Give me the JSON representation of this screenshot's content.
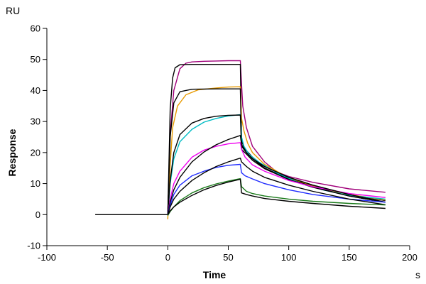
{
  "chart_data": {
    "type": "line",
    "title": "",
    "xlabel": "Time",
    "ylabel": "Response",
    "x_unit": "s",
    "y_unit": "RU",
    "xlim": [
      -100,
      200
    ],
    "ylim": [
      -10,
      60
    ],
    "xticks": [
      -100,
      -50,
      0,
      50,
      100,
      150,
      200
    ],
    "yticks": [
      -10,
      0,
      10,
      20,
      30,
      40,
      50,
      60
    ],
    "grid": false,
    "legend": "none",
    "baseline": {
      "color": "#000000",
      "points": [
        [
          -60,
          0
        ],
        [
          0,
          0
        ]
      ]
    },
    "series": [
      {
        "color": "#a0007a",
        "points": [
          [
            0,
            0
          ],
          [
            2,
            26
          ],
          [
            5,
            40
          ],
          [
            10,
            47
          ],
          [
            15,
            48.8
          ],
          [
            20,
            49.2
          ],
          [
            30,
            49.4
          ],
          [
            40,
            49.5
          ],
          [
            50,
            49.6
          ],
          [
            60,
            49.6
          ],
          [
            61,
            42
          ],
          [
            62,
            35
          ],
          [
            65,
            28
          ],
          [
            70,
            22
          ],
          [
            80,
            17
          ],
          [
            90,
            13.8
          ],
          [
            100,
            12.3
          ],
          [
            120,
            10.4
          ],
          [
            150,
            8.3
          ],
          [
            180,
            7.2
          ]
        ]
      },
      {
        "color": "#000000",
        "points": [
          [
            0,
            0
          ],
          [
            2,
            34
          ],
          [
            4,
            44
          ],
          [
            6,
            47.3
          ],
          [
            10,
            48.3
          ],
          [
            20,
            48.4
          ],
          [
            40,
            48.4
          ],
          [
            60,
            48.4
          ],
          [
            61,
            24
          ],
          [
            63,
            21.5
          ],
          [
            70,
            18.5
          ],
          [
            80,
            15.5
          ],
          [
            100,
            12
          ],
          [
            120,
            9.5
          ],
          [
            150,
            6.5
          ],
          [
            180,
            4.5
          ]
        ]
      },
      {
        "color": "#e89a00",
        "points": [
          [
            0,
            -1.5
          ],
          [
            2,
            16
          ],
          [
            4,
            28
          ],
          [
            8,
            35
          ],
          [
            15,
            38.6
          ],
          [
            25,
            40.2
          ],
          [
            40,
            40.8
          ],
          [
            50,
            41.1
          ],
          [
            60,
            41.2
          ],
          [
            61,
            31
          ],
          [
            63,
            27
          ],
          [
            66,
            23
          ],
          [
            70,
            20
          ],
          [
            80,
            16.2
          ],
          [
            100,
            11.8
          ],
          [
            120,
            9.2
          ],
          [
            150,
            6.5
          ],
          [
            180,
            4.7
          ]
        ]
      },
      {
        "color": "#000000",
        "points": [
          [
            0,
            0
          ],
          [
            2,
            25
          ],
          [
            5,
            36
          ],
          [
            10,
            39.6
          ],
          [
            20,
            40.4
          ],
          [
            40,
            40.5
          ],
          [
            60,
            40.5
          ],
          [
            61,
            22
          ],
          [
            65,
            20
          ],
          [
            70,
            18
          ],
          [
            80,
            15
          ],
          [
            100,
            11.5
          ],
          [
            120,
            9
          ],
          [
            150,
            6
          ],
          [
            180,
            4
          ]
        ]
      },
      {
        "color": "#00bcc4",
        "points": [
          [
            0,
            0
          ],
          [
            2,
            10
          ],
          [
            5,
            18
          ],
          [
            10,
            23.5
          ],
          [
            20,
            27.5
          ],
          [
            30,
            29.8
          ],
          [
            40,
            31
          ],
          [
            50,
            31.8
          ],
          [
            60,
            32.2
          ],
          [
            61,
            25
          ],
          [
            63,
            22
          ],
          [
            67,
            19.5
          ],
          [
            75,
            17
          ],
          [
            90,
            13.5
          ],
          [
            110,
            10
          ],
          [
            130,
            7.8
          ],
          [
            150,
            6.2
          ],
          [
            180,
            5
          ]
        ]
      },
      {
        "color": "#000000",
        "points": [
          [
            0,
            0
          ],
          [
            2,
            11
          ],
          [
            5,
            20
          ],
          [
            10,
            25.8
          ],
          [
            20,
            29.5
          ],
          [
            30,
            31
          ],
          [
            40,
            31.7
          ],
          [
            50,
            32
          ],
          [
            60,
            32.1
          ],
          [
            61,
            21
          ],
          [
            65,
            19.5
          ],
          [
            70,
            17.5
          ],
          [
            80,
            14.8
          ],
          [
            100,
            11.3
          ],
          [
            120,
            8.8
          ],
          [
            150,
            6
          ],
          [
            180,
            4
          ]
        ]
      },
      {
        "color": "#f000f0",
        "points": [
          [
            0,
            0
          ],
          [
            2,
            5
          ],
          [
            5,
            10
          ],
          [
            10,
            14
          ],
          [
            20,
            18.5
          ],
          [
            30,
            20.8
          ],
          [
            40,
            22
          ],
          [
            50,
            22.8
          ],
          [
            60,
            23.2
          ],
          [
            61,
            21
          ],
          [
            64,
            18.5
          ],
          [
            70,
            16
          ],
          [
            80,
            14
          ],
          [
            100,
            11
          ],
          [
            120,
            9
          ],
          [
            150,
            6.8
          ],
          [
            180,
            5.5
          ]
        ]
      },
      {
        "color": "#000000",
        "points": [
          [
            0,
            0
          ],
          [
            2,
            4
          ],
          [
            5,
            8
          ],
          [
            10,
            12
          ],
          [
            20,
            17
          ],
          [
            30,
            20.2
          ],
          [
            40,
            22.5
          ],
          [
            50,
            24.2
          ],
          [
            60,
            25.5
          ],
          [
            61,
            22.5
          ],
          [
            65,
            20
          ],
          [
            70,
            18
          ],
          [
            80,
            15.5
          ],
          [
            100,
            12
          ],
          [
            120,
            9.5
          ],
          [
            150,
            6.5
          ],
          [
            180,
            4
          ]
        ]
      },
      {
        "color": "#1f2bff",
        "points": [
          [
            0,
            0
          ],
          [
            2,
            3
          ],
          [
            5,
            6.5
          ],
          [
            10,
            9.5
          ],
          [
            20,
            12.5
          ],
          [
            30,
            14
          ],
          [
            40,
            15.2
          ],
          [
            50,
            15.9
          ],
          [
            60,
            16.2
          ],
          [
            61,
            13.5
          ],
          [
            64,
            12.5
          ],
          [
            70,
            11.5
          ],
          [
            80,
            10
          ],
          [
            100,
            8
          ],
          [
            120,
            6.5
          ],
          [
            150,
            5
          ],
          [
            180,
            4
          ]
        ]
      },
      {
        "color": "#000000",
        "points": [
          [
            0,
            0
          ],
          [
            2,
            2.5
          ],
          [
            5,
            5
          ],
          [
            10,
            7.5
          ],
          [
            20,
            11
          ],
          [
            30,
            13.5
          ],
          [
            40,
            15.5
          ],
          [
            50,
            17
          ],
          [
            60,
            18.2
          ],
          [
            61,
            17
          ],
          [
            65,
            15.5
          ],
          [
            70,
            14
          ],
          [
            80,
            12
          ],
          [
            100,
            9.5
          ],
          [
            120,
            7.5
          ],
          [
            150,
            5
          ],
          [
            180,
            3.2
          ]
        ]
      },
      {
        "color": "#1a7a1a",
        "points": [
          [
            0,
            -0.3
          ],
          [
            2,
            1
          ],
          [
            5,
            2.5
          ],
          [
            10,
            4.5
          ],
          [
            20,
            7
          ],
          [
            30,
            8.7
          ],
          [
            40,
            9.9
          ],
          [
            50,
            10.8
          ],
          [
            60,
            11.6
          ],
          [
            61,
            9
          ],
          [
            65,
            7.5
          ],
          [
            70,
            6.8
          ],
          [
            80,
            6
          ],
          [
            100,
            5
          ],
          [
            120,
            4.3
          ],
          [
            150,
            3.6
          ],
          [
            180,
            3.1
          ]
        ]
      },
      {
        "color": "#000000",
        "points": [
          [
            0,
            0
          ],
          [
            2,
            1.2
          ],
          [
            5,
            2.5
          ],
          [
            10,
            4
          ],
          [
            20,
            6.2
          ],
          [
            30,
            8
          ],
          [
            40,
            9.4
          ],
          [
            50,
            10.5
          ],
          [
            60,
            11.4
          ],
          [
            61,
            7
          ],
          [
            65,
            6.5
          ],
          [
            70,
            6
          ],
          [
            80,
            5.2
          ],
          [
            100,
            4.3
          ],
          [
            120,
            3.6
          ],
          [
            150,
            2.7
          ],
          [
            180,
            2
          ]
        ]
      }
    ]
  }
}
